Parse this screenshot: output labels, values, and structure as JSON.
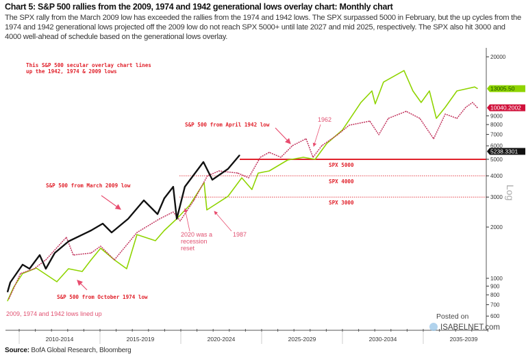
{
  "header": {
    "title": "Chart 5: S&P 500 rallies from the 2009, 1974 and 1942 generational lows overlay chart: Monthly chart",
    "description": "The SPX rally from the March 2009 low has exceeded the rallies from the 1974 and 1942 lows. The SPX surpassed 5000 in February, but the up cycles from the 1974 and 1942 generational lows projected off the 2009 low do not reach SPX 5000+ until late 2027 and mid 2025, respectively. The SPX also hit 3000 and 4000 well-ahead of schedule based on the generational lows overlay."
  },
  "source": {
    "label": "Source:",
    "text": " BofA Global Research, Bloomberg"
  },
  "watermark": {
    "line1": "Posted on",
    "line2": "ISABELNET.com"
  },
  "chart_data": {
    "type": "line",
    "yscale": "log",
    "ylabel": "Log",
    "ylim": [
      560,
      23000
    ],
    "xlim": [
      2009.2,
      2039.9
    ],
    "y_ticks": [
      20000,
      9000,
      8000,
      7000,
      6000,
      5000,
      4000,
      3000,
      2000,
      1000,
      900,
      800,
      700,
      600
    ],
    "x_periods": [
      "2010-2014",
      "2015-2019",
      "2020-2024",
      "2025-2029",
      "2030-2034",
      "2035-2039"
    ],
    "colors": {
      "spx_2009": "#111111",
      "overlay_1974": "#8fd400",
      "overlay_1942": "#c0305a",
      "annotation": "#e0202a"
    },
    "series": [
      {
        "key": "spx_2009",
        "points": [
          [
            2009.28,
            831
          ],
          [
            2009.45,
            946
          ],
          [
            2010.21,
            1203
          ],
          [
            2010.64,
            1138
          ],
          [
            2011.27,
            1370
          ],
          [
            2011.65,
            1138
          ],
          [
            2012.2,
            1408
          ],
          [
            2013.05,
            1648
          ],
          [
            2014.45,
            1911
          ],
          [
            2015.17,
            2095
          ],
          [
            2015.72,
            1858
          ],
          [
            2016.74,
            2235
          ],
          [
            2017.71,
            2870
          ],
          [
            2018.56,
            2384
          ],
          [
            2018.98,
            2950
          ],
          [
            2019.53,
            3450
          ],
          [
            2019.75,
            2235
          ],
          [
            2020.25,
            3450
          ],
          [
            2021.4,
            4820
          ],
          [
            2021.95,
            3790
          ],
          [
            2022.92,
            4390
          ],
          [
            2023.64,
            5290
          ]
        ]
      },
      {
        "key": "overlay_1974",
        "points": [
          [
            2009.28,
            737
          ],
          [
            2009.66,
            887
          ],
          [
            2010.21,
            1067
          ],
          [
            2011.06,
            1149
          ],
          [
            2012.33,
            955
          ],
          [
            2013.05,
            1138
          ],
          [
            2013.9,
            1097
          ],
          [
            2014.45,
            1284
          ],
          [
            2015.04,
            1502
          ],
          [
            2015.89,
            1284
          ],
          [
            2016.65,
            1138
          ],
          [
            2017.29,
            1806
          ],
          [
            2018.43,
            1663
          ],
          [
            2018.98,
            1911
          ],
          [
            2019.75,
            2235
          ],
          [
            2020.55,
            2689
          ],
          [
            2021.44,
            3650
          ],
          [
            2021.61,
            2521
          ],
          [
            2022.92,
            3030
          ],
          [
            2023.77,
            3892
          ],
          [
            2024.4,
            3325
          ],
          [
            2024.79,
            4150
          ],
          [
            2025.47,
            4270
          ],
          [
            2026.61,
            4950
          ],
          [
            2027.58,
            5140
          ],
          [
            2028.31,
            5000
          ],
          [
            2029.03,
            6190
          ],
          [
            2030.0,
            7430
          ],
          [
            2031.14,
            10780
          ],
          [
            2031.82,
            12600
          ],
          [
            2032.03,
            10580
          ],
          [
            2032.54,
            14200
          ],
          [
            2033.81,
            16600
          ],
          [
            2034.36,
            12600
          ],
          [
            2034.87,
            10780
          ],
          [
            2035.38,
            12600
          ],
          [
            2035.81,
            8700
          ],
          [
            2036.36,
            10100
          ],
          [
            2037.08,
            12600
          ],
          [
            2038.18,
            13300
          ],
          [
            2038.35,
            13005.5
          ]
        ]
      },
      {
        "key": "overlay_1942",
        "points": [
          [
            2009.36,
            758
          ],
          [
            2010.08,
            1067
          ],
          [
            2010.93,
            1138
          ],
          [
            2011.65,
            1284
          ],
          [
            2012.92,
            1742
          ],
          [
            2013.35,
            1370
          ],
          [
            2014.45,
            1408
          ],
          [
            2015.04,
            1544
          ],
          [
            2015.89,
            1284
          ],
          [
            2017.29,
            1858
          ],
          [
            2018.69,
            2235
          ],
          [
            2019.53,
            2452
          ],
          [
            2019.96,
            2175
          ],
          [
            2020.81,
            2870
          ],
          [
            2021.65,
            4000
          ],
          [
            2022.37,
            4270
          ],
          [
            2023.52,
            4150
          ],
          [
            2024.2,
            3892
          ],
          [
            2024.92,
            5140
          ],
          [
            2025.47,
            5490
          ],
          [
            2026.19,
            5140
          ],
          [
            2026.91,
            6020
          ],
          [
            2027.75,
            6600
          ],
          [
            2028.18,
            5140
          ],
          [
            2028.73,
            6020
          ],
          [
            2029.7,
            6970
          ],
          [
            2030.42,
            7930
          ],
          [
            2031.69,
            8380
          ],
          [
            2032.25,
            6970
          ],
          [
            2032.84,
            8700
          ],
          [
            2033.94,
            9570
          ],
          [
            2034.79,
            8700
          ],
          [
            2035.64,
            6600
          ],
          [
            2036.36,
            9220
          ],
          [
            2037.08,
            8700
          ],
          [
            2037.63,
            10100
          ],
          [
            2038.05,
            10780
          ],
          [
            2038.35,
            10040.2002
          ]
        ]
      }
    ],
    "last_values": {
      "overlay_1974": "13005.50",
      "overlay_1942": "10040.2002",
      "spx_2009": "5238.3301"
    },
    "reference_lines": [
      {
        "value": 5000,
        "label": "SPX 5000",
        "style": "solid"
      },
      {
        "value": 4000,
        "label": "SPX 4000",
        "style": "dotted"
      },
      {
        "value": 3000,
        "label": "SPX 3000",
        "style": "dotted"
      }
    ],
    "annotations": {
      "intro_1": "This S&P 500 secular overlay chart lines",
      "intro_2": "up the 1942, 1974 & 2009 lows",
      "april_1942": "S&P 500 from April 1942 low",
      "y1962": "1962",
      "march_2009": "S&P 500 from March 2009 low",
      "recession_1": "2020 was a",
      "recession_2": "recession",
      "recession_3": "reset",
      "y1987": "1987",
      "october_1974": "S&P 500 from October 1974 low",
      "lined_up": "2009, 1974 and 1942 lows lined up"
    }
  }
}
